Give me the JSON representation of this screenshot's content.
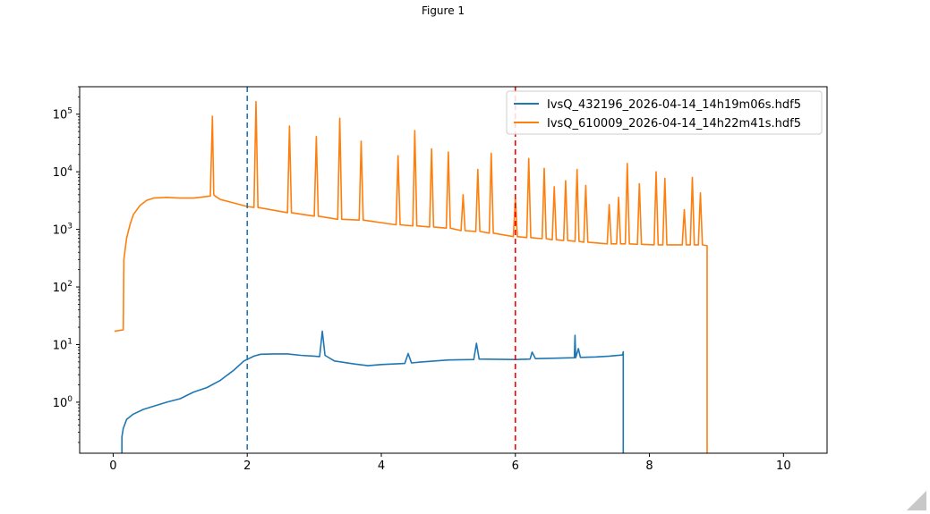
{
  "window": {
    "title": "Figure 1"
  },
  "chart_data": {
    "type": "line",
    "yscale": "log",
    "xlim": [
      -0.5,
      10.65
    ],
    "ylim": [
      0.13,
      300000
    ],
    "xticks": [
      0,
      2,
      4,
      6,
      8,
      10
    ],
    "xtick_labels": [
      "0",
      "2",
      "4",
      "6",
      "8",
      "10"
    ],
    "yticks": [
      1,
      10,
      100,
      1000,
      10000,
      100000
    ],
    "ytick_labels": [
      {
        "base": "10",
        "exp": "0"
      },
      {
        "base": "10",
        "exp": "1"
      },
      {
        "base": "10",
        "exp": "2"
      },
      {
        "base": "10",
        "exp": "3"
      },
      {
        "base": "10",
        "exp": "4"
      },
      {
        "base": "10",
        "exp": "5"
      }
    ],
    "legend_position": "top-right",
    "vlines": [
      {
        "x": 2.0,
        "color": "#1f77b4",
        "style": "dashed"
      },
      {
        "x": 6.0,
        "color": "#ff0000",
        "style": "dashed"
      }
    ],
    "series": [
      {
        "name": "IvsQ_432196_2026-04-14_14h19m06s.hdf5",
        "color": "#1f77b4",
        "x": [
          0.13,
          0.13,
          0.15,
          0.2,
          0.3,
          0.45,
          0.6,
          0.8,
          1.0,
          1.2,
          1.4,
          1.6,
          1.8,
          1.95,
          2.1,
          2.2,
          2.4,
          2.6,
          2.8,
          3.0,
          3.08,
          3.12,
          3.16,
          3.3,
          3.6,
          3.8,
          4.0,
          4.35,
          4.4,
          4.45,
          4.6,
          5.0,
          5.38,
          5.42,
          5.46,
          6.0,
          6.22,
          6.25,
          6.3,
          6.6,
          6.88,
          6.89,
          6.9,
          6.94,
          6.97,
          7.2,
          7.4,
          7.6,
          7.61,
          7.61
        ],
        "y": [
          0.13,
          0.25,
          0.35,
          0.5,
          0.62,
          0.75,
          0.85,
          1.0,
          1.15,
          1.5,
          1.8,
          2.4,
          3.6,
          5.2,
          6.3,
          6.8,
          6.9,
          6.9,
          6.5,
          6.3,
          6.2,
          17,
          6.5,
          5.2,
          4.6,
          4.3,
          4.5,
          4.7,
          7.0,
          4.8,
          5.0,
          5.4,
          5.5,
          10.5,
          5.6,
          5.5,
          5.6,
          7.4,
          5.7,
          5.8,
          5.9,
          14.5,
          5.9,
          8.5,
          6.0,
          6.1,
          6.3,
          6.6,
          7.5,
          0.13
        ]
      },
      {
        "name": "IvsQ_610009_2026-04-14_14h22m41s.hdf5",
        "color": "#ff7f0e",
        "x": [
          0.02,
          0.15,
          0.16,
          0.2,
          0.25,
          0.3,
          0.4,
          0.5,
          0.6,
          0.8,
          1.0,
          1.2,
          1.45,
          1.48,
          1.5,
          1.52,
          1.6,
          2.0,
          2.1,
          2.13,
          2.16,
          2.6,
          2.63,
          2.66,
          3.0,
          3.03,
          3.06,
          3.35,
          3.38,
          3.41,
          3.67,
          3.7,
          3.73,
          4.22,
          4.25,
          4.28,
          4.47,
          4.5,
          4.53,
          4.72,
          4.75,
          4.78,
          4.97,
          5.0,
          5.03,
          5.19,
          5.22,
          5.25,
          5.41,
          5.44,
          5.47,
          5.61,
          5.64,
          5.67,
          5.97,
          6.0,
          6.03,
          6.17,
          6.2,
          6.23,
          6.4,
          6.43,
          6.46,
          6.55,
          6.58,
          6.61,
          6.72,
          6.75,
          6.78,
          6.89,
          6.92,
          6.95,
          7.02,
          7.05,
          7.08,
          7.37,
          7.4,
          7.43,
          7.51,
          7.54,
          7.57,
          7.64,
          7.67,
          7.7,
          7.82,
          7.85,
          7.88,
          8.07,
          8.1,
          8.13,
          8.2,
          8.23,
          8.26,
          8.49,
          8.52,
          8.55,
          8.61,
          8.64,
          8.67,
          8.73,
          8.76,
          8.79,
          8.86,
          8.86
        ],
        "y": [
          17,
          18,
          300,
          700,
          1200,
          1800,
          2600,
          3200,
          3500,
          3600,
          3500,
          3500,
          3800,
          92000,
          4000,
          3800,
          3300,
          2500,
          2400,
          165000,
          2400,
          1950,
          62000,
          1950,
          1700,
          41000,
          1700,
          1500,
          85000,
          1500,
          1450,
          34000,
          1450,
          1200,
          19000,
          1200,
          1150,
          52000,
          1150,
          1100,
          25000,
          1100,
          1050,
          22000,
          1050,
          950,
          4000,
          950,
          920,
          11000,
          920,
          860,
          21000,
          860,
          750,
          3500,
          750,
          720,
          17000,
          720,
          690,
          11500,
          690,
          660,
          5500,
          660,
          640,
          7000,
          640,
          620,
          11000,
          620,
          600,
          5800,
          600,
          560,
          2700,
          560,
          560,
          3600,
          560,
          560,
          14000,
          560,
          550,
          6200,
          550,
          540,
          10000,
          540,
          540,
          7700,
          540,
          540,
          2200,
          540,
          540,
          8000,
          540,
          540,
          4300,
          540,
          520,
          0.13
        ]
      }
    ]
  }
}
